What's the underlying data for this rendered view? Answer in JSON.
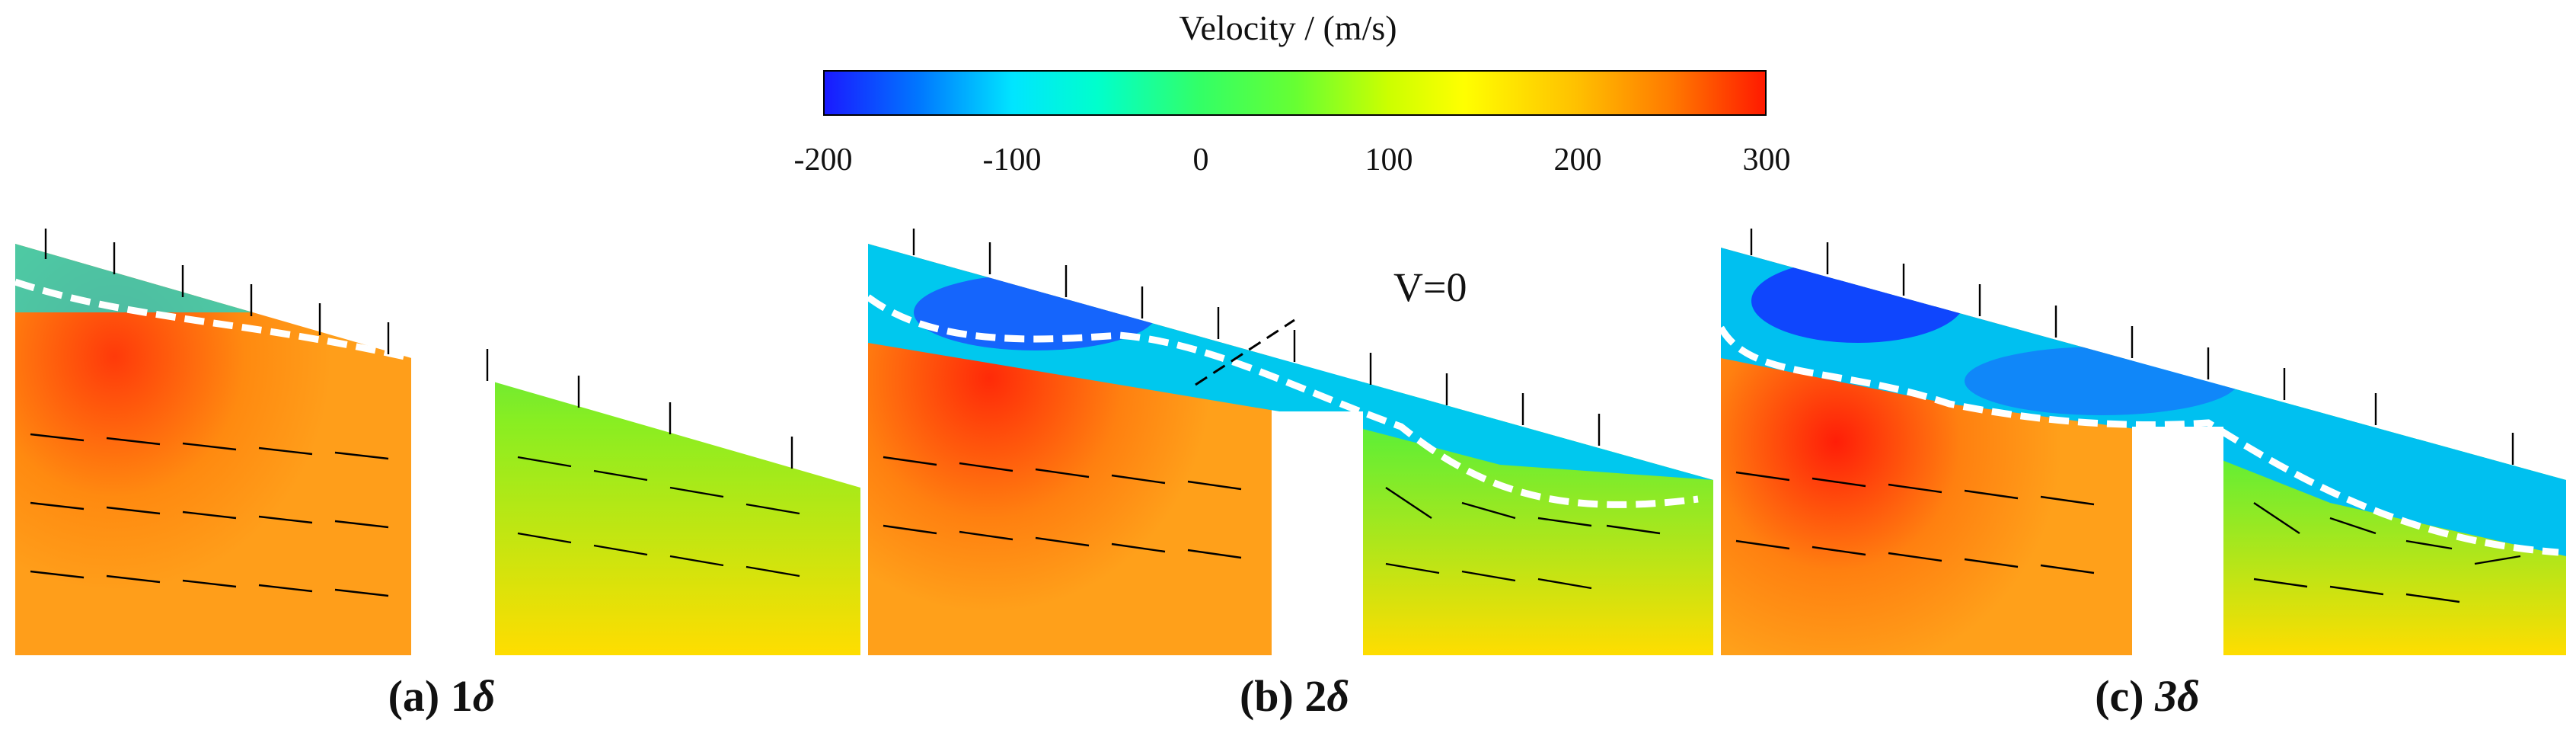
{
  "legend": {
    "title": "Velocity / (m/s)",
    "colors": [
      "#1a1aff",
      "#0077ff",
      "#00e5ff",
      "#33ff66",
      "#ccff00",
      "#ffff00",
      "#ffc000",
      "#ff7a00",
      "#ff1a00"
    ],
    "ticks": [
      "-200",
      "-100",
      "0",
      "100",
      "200",
      "300"
    ]
  },
  "annotation": {
    "label": "V=0"
  },
  "panels": [
    {
      "id": "a",
      "prefix": "(a) 1",
      "symbol": "δ"
    },
    {
      "id": "b",
      "prefix": "(b) 2",
      "symbol": "δ"
    },
    {
      "id": "c",
      "prefix": "(c) ",
      "symbol": "3δ"
    }
  ]
}
